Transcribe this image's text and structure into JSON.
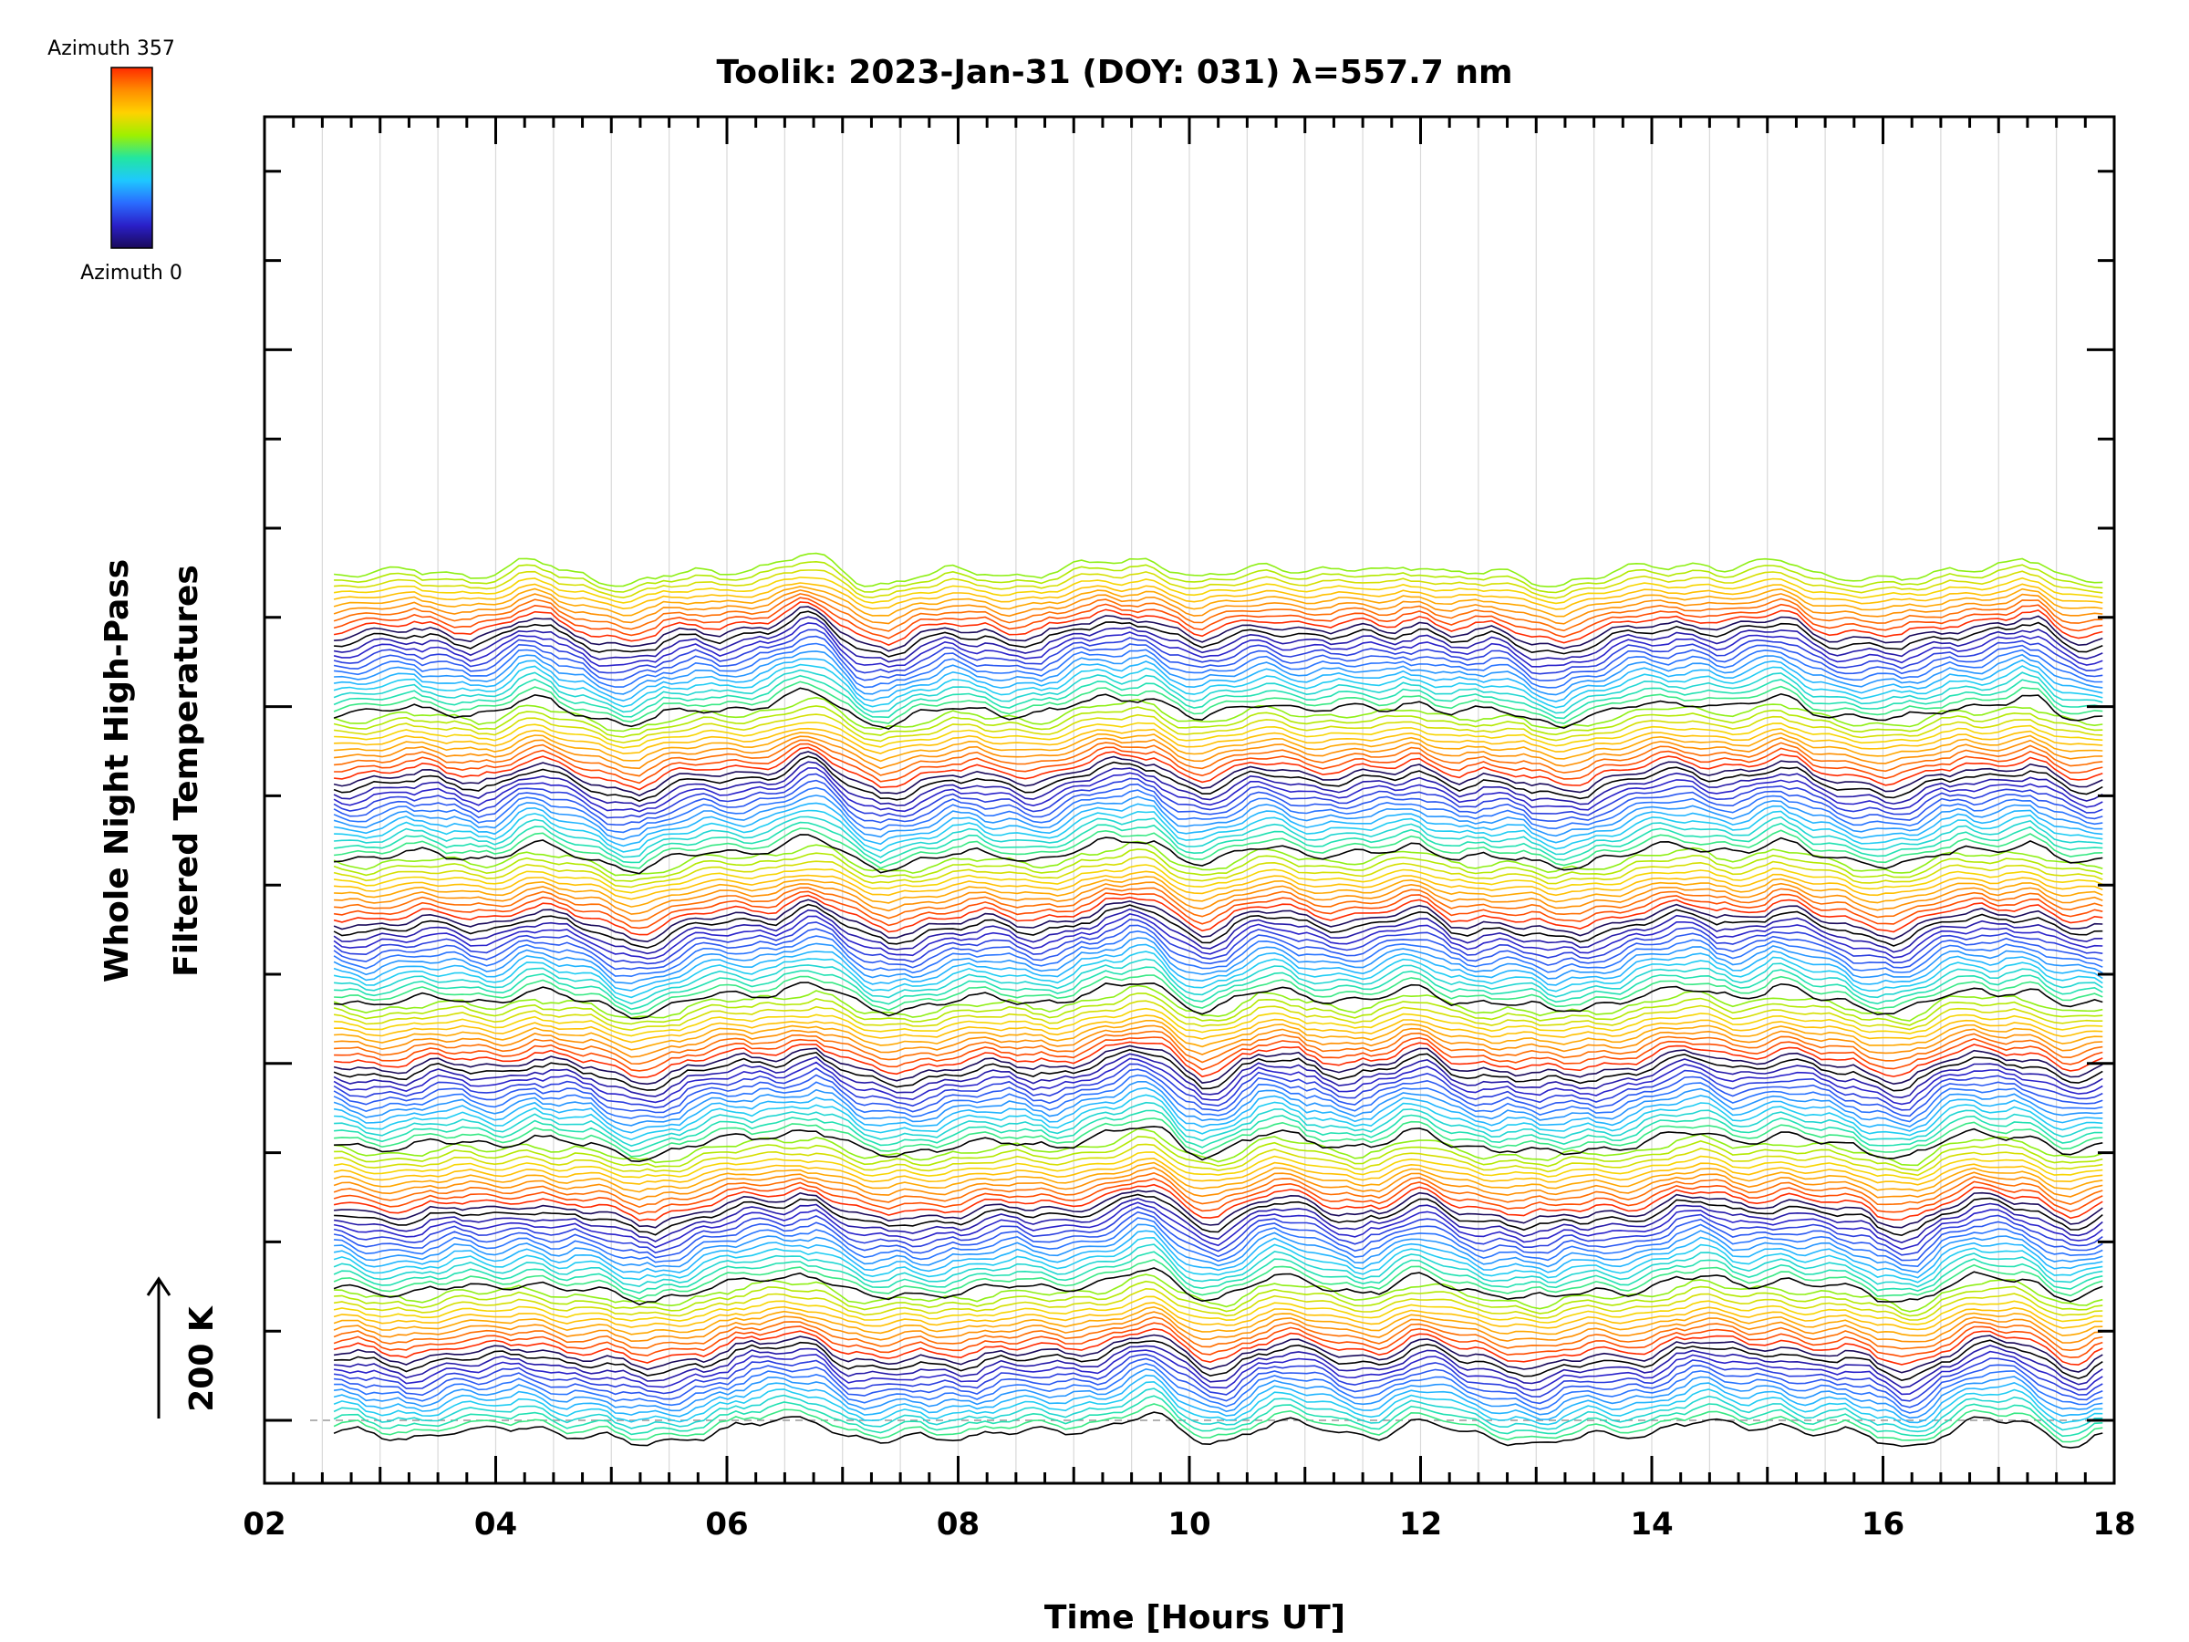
{
  "chart_data": {
    "type": "line",
    "title": "Toolik: 2023-Jan-31 (DOY: 031) λ=557.7 nm",
    "xlabel": "Time [Hours UT]",
    "ylabel_line1": "Whole Night High-Pass",
    "ylabel_line2": "Filtered Temperatures",
    "xlim": [
      2,
      18
    ],
    "x_ticks": [
      "02",
      "04",
      "06",
      "08",
      "10",
      "12",
      "14",
      "16",
      "18"
    ],
    "x_tick_values": [
      2,
      4,
      6,
      8,
      10,
      12,
      14,
      16,
      18
    ],
    "scale_label": "200 K",
    "colorbar": {
      "top_label": "Azimuth 357",
      "bottom_label": "Azimuth 0",
      "colors": [
        "#ff2a00",
        "#ff8c00",
        "#ffd200",
        "#9ef000",
        "#22e6a0",
        "#1ec8ff",
        "#2a6cff",
        "#2a1fc8",
        "#1a0a5a"
      ]
    },
    "n_traces": 144,
    "x_start": 2.6,
    "x_end": 17.9,
    "event_times_h": [
      4.3,
      5.2,
      6.5,
      6.75,
      7.3,
      9.4,
      9.7,
      10.2,
      10.7,
      12.0,
      13.1,
      14.4,
      15.1,
      16.2,
      16.9,
      17.3,
      17.6
    ],
    "grid": true
  }
}
